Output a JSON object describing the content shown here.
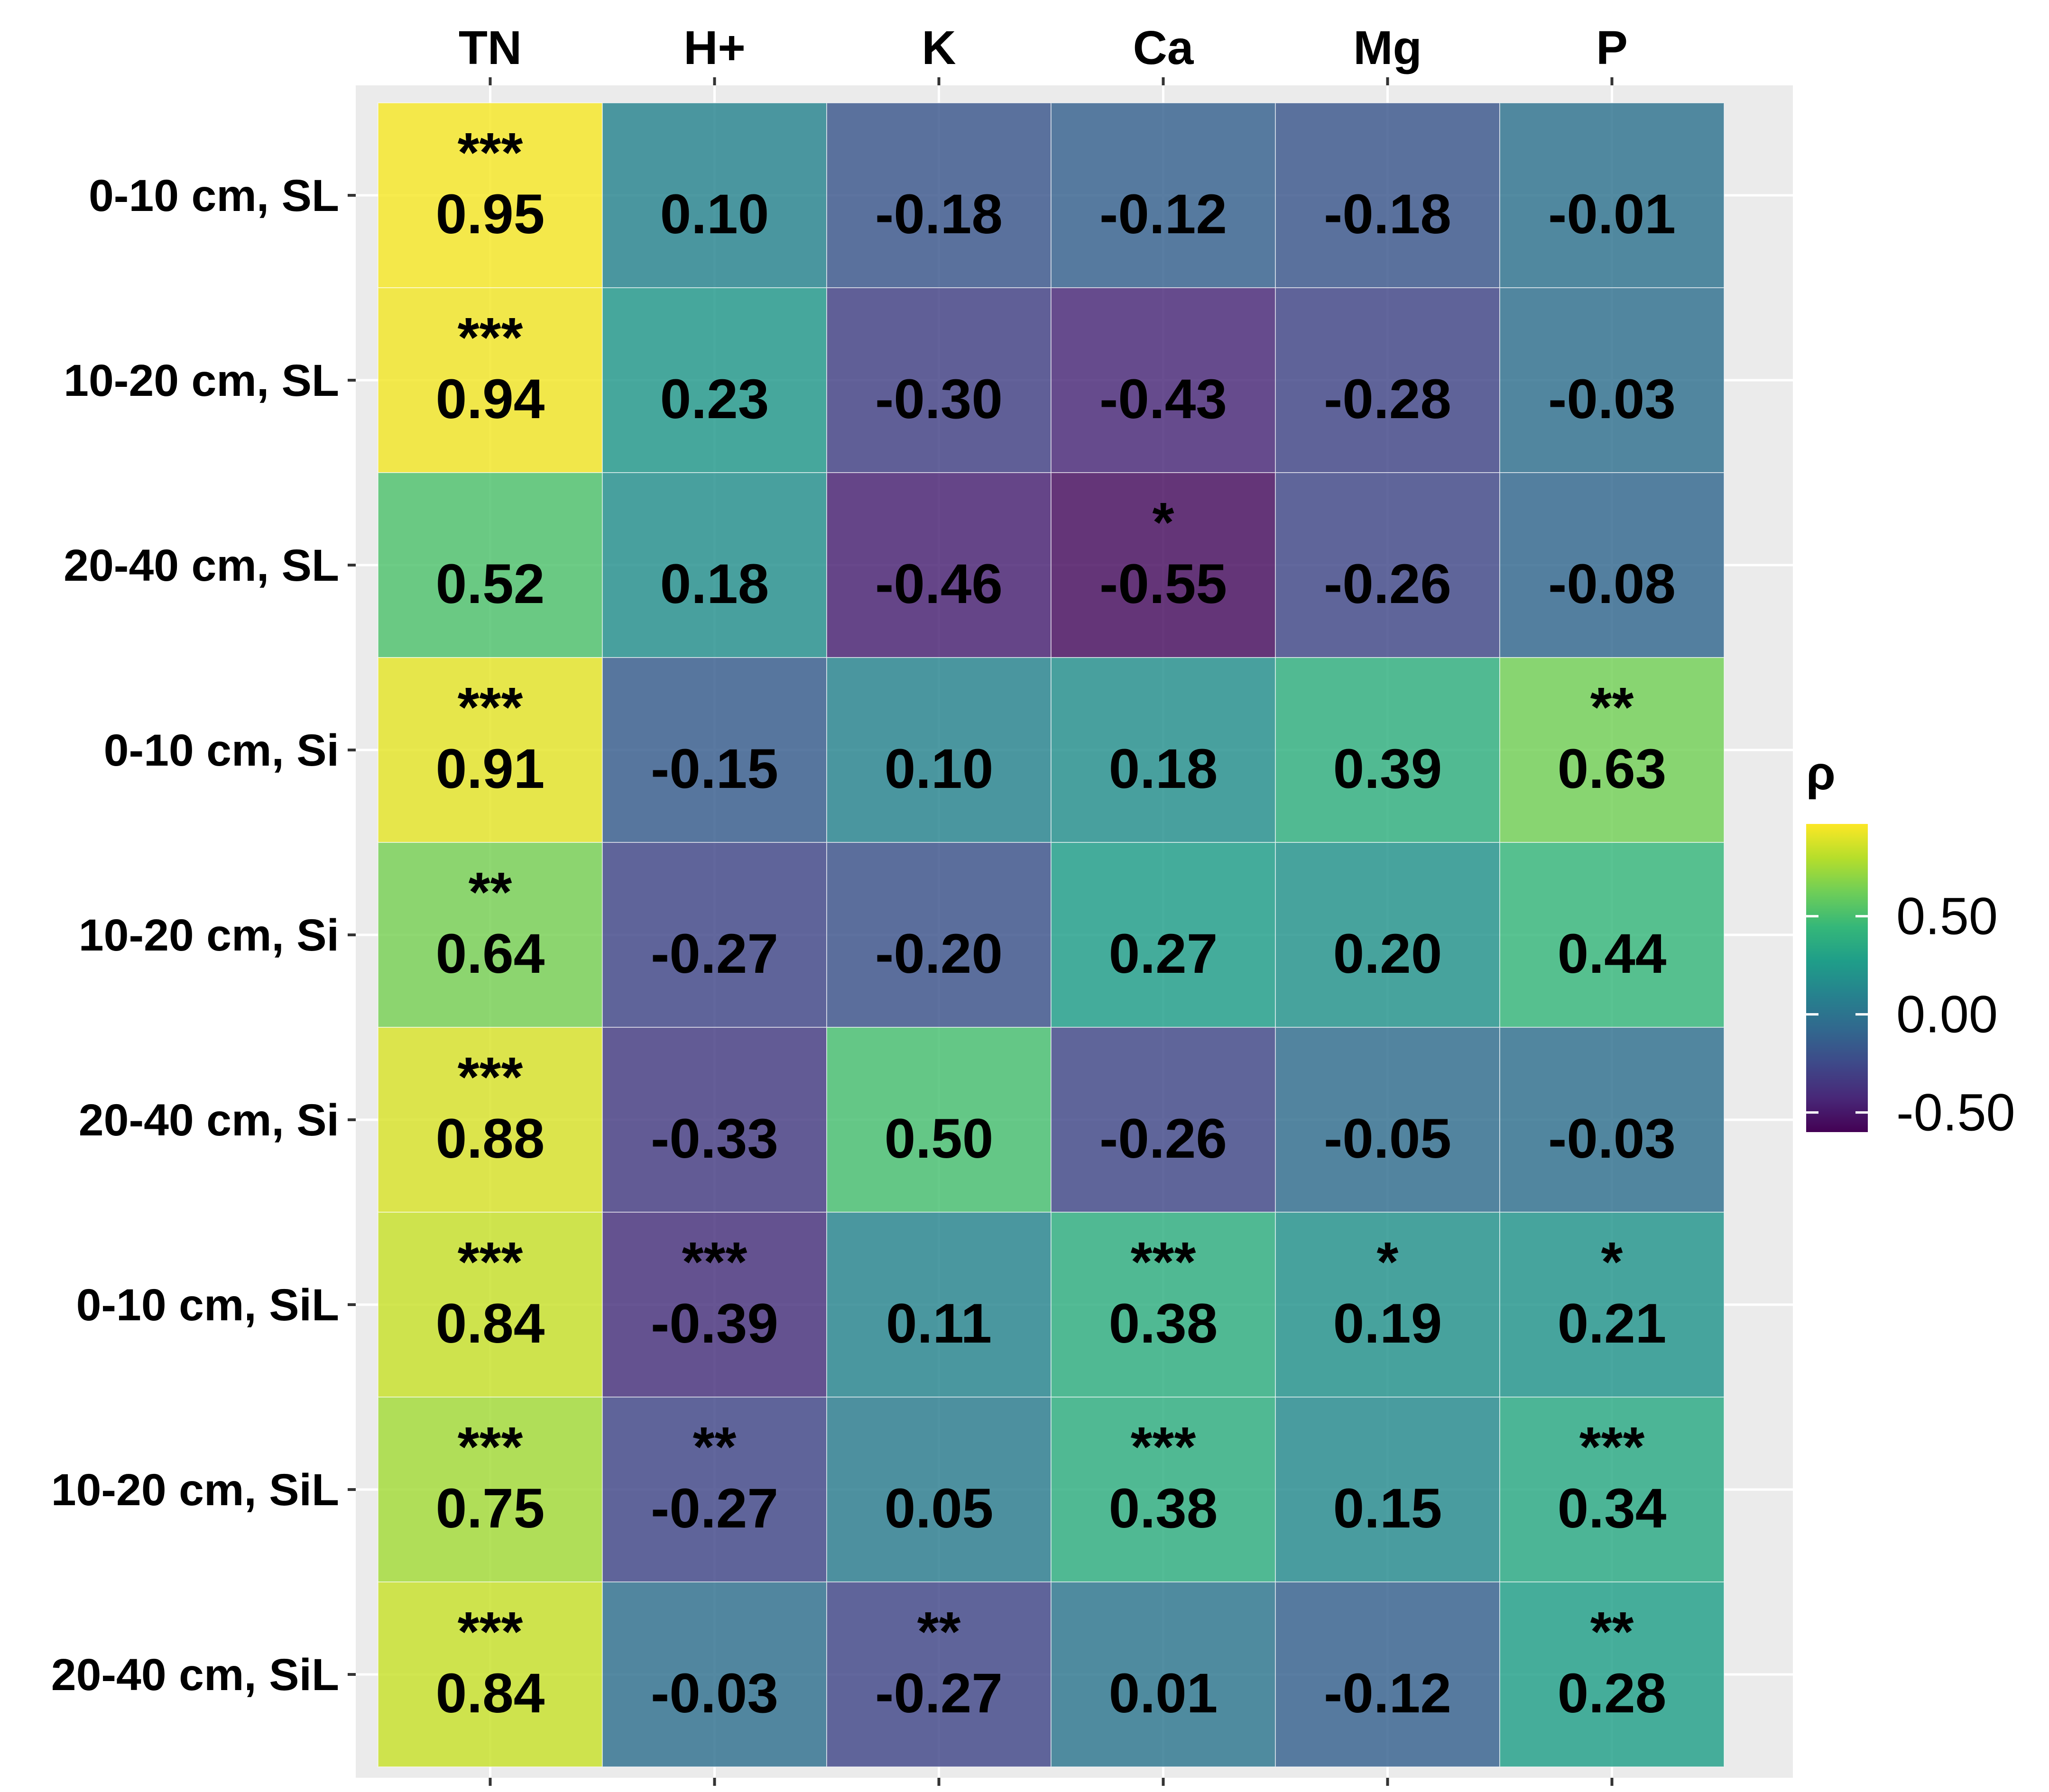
{
  "chart_data": {
    "type": "heatmap",
    "columns": [
      "TN",
      "H+",
      "K",
      "Ca",
      "Mg",
      "P"
    ],
    "rows": [
      "0-10 cm, SL",
      "10-20 cm, SL",
      "20-40 cm, SL",
      "0-10 cm, Si",
      "10-20 cm, Si",
      "20-40 cm, Si",
      "0-10 cm, SiL",
      "10-20 cm, SiL",
      "20-40 cm, SiL"
    ],
    "values": [
      [
        0.95,
        0.1,
        -0.18,
        -0.12,
        -0.18,
        -0.01
      ],
      [
        0.94,
        0.23,
        -0.3,
        -0.43,
        -0.28,
        -0.03
      ],
      [
        0.52,
        0.18,
        -0.46,
        -0.55,
        -0.26,
        -0.08
      ],
      [
        0.91,
        -0.15,
        0.1,
        0.18,
        0.39,
        0.63
      ],
      [
        0.64,
        -0.27,
        -0.2,
        0.27,
        0.2,
        0.44
      ],
      [
        0.88,
        -0.33,
        0.5,
        -0.26,
        -0.05,
        -0.03
      ],
      [
        0.84,
        -0.39,
        0.11,
        0.38,
        0.19,
        0.21
      ],
      [
        0.75,
        -0.27,
        0.05,
        0.38,
        0.15,
        0.34
      ],
      [
        0.84,
        -0.03,
        -0.27,
        0.01,
        -0.12,
        0.28
      ]
    ],
    "labels": [
      [
        "0.95",
        "0.10",
        "-0.18",
        "-0.12",
        "-0.18",
        "-0.01"
      ],
      [
        "0.94",
        "0.23",
        "-0.30",
        "-0.43",
        "-0.28",
        "-0.03"
      ],
      [
        "0.52",
        "0.18",
        "-0.46",
        "-0.55",
        "-0.26",
        "-0.08"
      ],
      [
        "0.91",
        "-0.15",
        "0.10",
        "0.18",
        "0.39",
        "0.63"
      ],
      [
        "0.64",
        "-0.27",
        "-0.20",
        "0.27",
        "0.20",
        "0.44"
      ],
      [
        "0.88",
        "-0.33",
        "0.50",
        "-0.26",
        "-0.05",
        "-0.03"
      ],
      [
        "0.84",
        "-0.39",
        "0.11",
        "0.38",
        "0.19",
        "0.21"
      ],
      [
        "0.75",
        "-0.27",
        "0.05",
        "0.38",
        "0.15",
        "0.34"
      ],
      [
        "0.84",
        "-0.03",
        "-0.27",
        "0.01",
        "-0.12",
        "0.28"
      ]
    ],
    "significance": [
      [
        "***",
        "",
        "",
        "",
        "",
        ""
      ],
      [
        "***",
        "",
        "",
        "",
        "",
        ""
      ],
      [
        "",
        "",
        "",
        "*",
        "",
        ""
      ],
      [
        "***",
        "",
        "",
        "",
        "",
        "**"
      ],
      [
        "**",
        "",
        "",
        "",
        "",
        ""
      ],
      [
        "***",
        "",
        "",
        "",
        "",
        ""
      ],
      [
        "***",
        "***",
        "",
        "***",
        "*",
        "*"
      ],
      [
        "***",
        "**",
        "",
        "***",
        "",
        "***"
      ],
      [
        "***",
        "",
        "**",
        "",
        "",
        "**"
      ]
    ],
    "color_scale": "viridis",
    "color_range": [
      -0.6,
      0.97
    ],
    "legend": {
      "title": "ρ",
      "breaks": [
        0.5,
        0.0,
        -0.5
      ],
      "break_labels": [
        "0.50",
        "0.00",
        "-0.50"
      ],
      "position": "right"
    },
    "xaxis_position": "top",
    "grid": true
  },
  "colors": {
    "panel_background": "#ebebeb",
    "grid_line": "#ffffff",
    "text": "#000000",
    "viridis_stops": [
      "#440154",
      "#482878",
      "#3e4989",
      "#31688e",
      "#26828e",
      "#1f9e89",
      "#35b779",
      "#6ece58",
      "#b5de2b",
      "#fde725"
    ]
  }
}
